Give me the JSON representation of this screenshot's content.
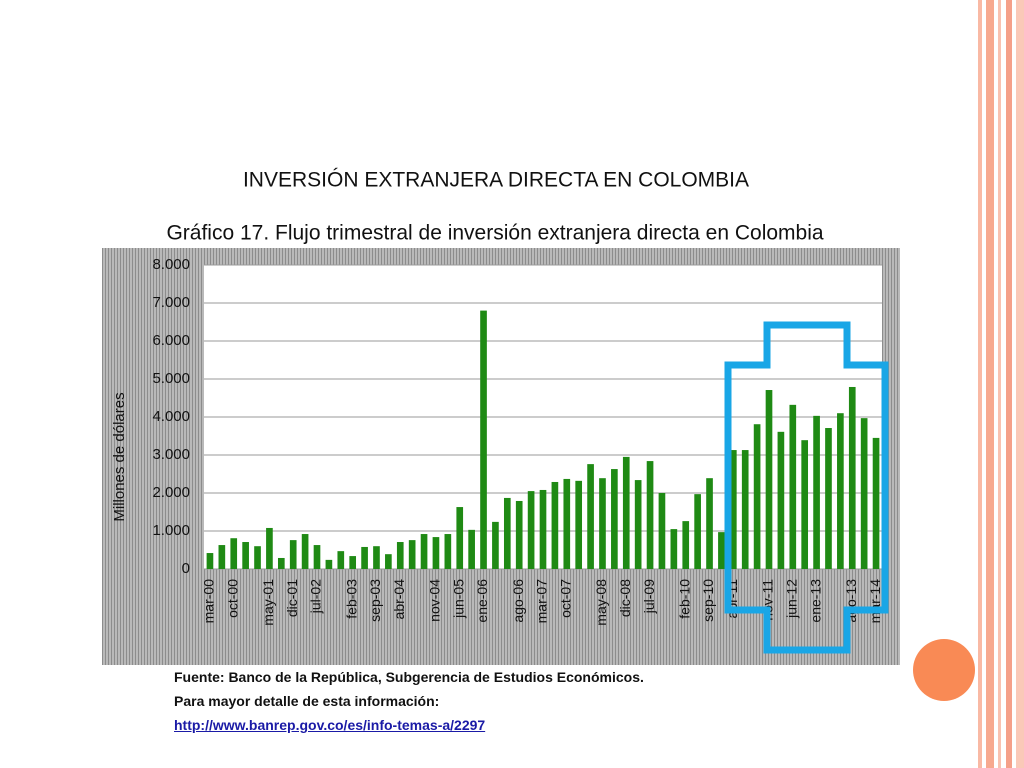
{
  "slide": {
    "title": "INVERSIÓN EXTRANJERA DIRECTA EN COLOMBIA"
  },
  "chart_data": {
    "type": "bar",
    "title": "Gráfico 17. Flujo trimestral de inversión extranjera directa en Colombia",
    "y_label": "Millones de dólares",
    "categories": [
      "mar-00",
      null,
      "oct-00",
      null,
      null,
      "may-01",
      null,
      "dic-01",
      null,
      "jul-02",
      null,
      null,
      "feb-03",
      null,
      "sep-03",
      null,
      "abr-04",
      null,
      null,
      "nov-04",
      null,
      "jun-05",
      null,
      "ene-06",
      null,
      null,
      "ago-06",
      null,
      "mar-07",
      null,
      "oct-07",
      null,
      null,
      "may-08",
      null,
      "dic-08",
      null,
      "jul-09",
      null,
      null,
      "feb-10",
      null,
      "sep-10",
      null,
      "abr-11",
      null,
      null,
      "nov-11",
      null,
      "jun-12",
      null,
      "ene-13",
      null,
      null,
      "ago-13",
      null,
      "mar-14"
    ],
    "values": [
      420,
      630,
      810,
      710,
      600,
      1080,
      290,
      760,
      920,
      630,
      240,
      470,
      340,
      580,
      600,
      390,
      710,
      760,
      920,
      840,
      920,
      1630,
      1030,
      6800,
      1240,
      1870,
      1790,
      2050,
      2080,
      2290,
      2370,
      2320,
      2760,
      2390,
      2630,
      2950,
      2340,
      2840,
      2000,
      1050,
      1260,
      1970,
      2390,
      970,
      3130,
      3130,
      3810,
      4710,
      3610,
      4320,
      3390,
      4030,
      3710,
      4100,
      4790,
      3970,
      3450
    ],
    "color": "#1f8a14",
    "ylim": [
      0,
      8000
    ],
    "yticks": [
      0,
      {
        "value": 1000,
        "label": "1.000"
      },
      {
        "value": 2000,
        "label": "2.000"
      },
      {
        "value": 3000,
        "label": "3.000"
      },
      {
        "value": 4000,
        "label": "4.000"
      },
      {
        "value": 5000,
        "label": "5.000"
      },
      {
        "value": 6000,
        "label": "6.000"
      },
      {
        "value": 7000,
        "label": "7.000"
      },
      {
        "value": 8000,
        "label": "8.000"
      }
    ],
    "grid": true
  },
  "footer": {
    "source": "Fuente: Banco de la República, Subgerencia de Estudios Económicos.",
    "note": "Para mayor detalle de esta información:",
    "link": "http://www.banrep.gov.co/es/info-temas-a/2297"
  }
}
